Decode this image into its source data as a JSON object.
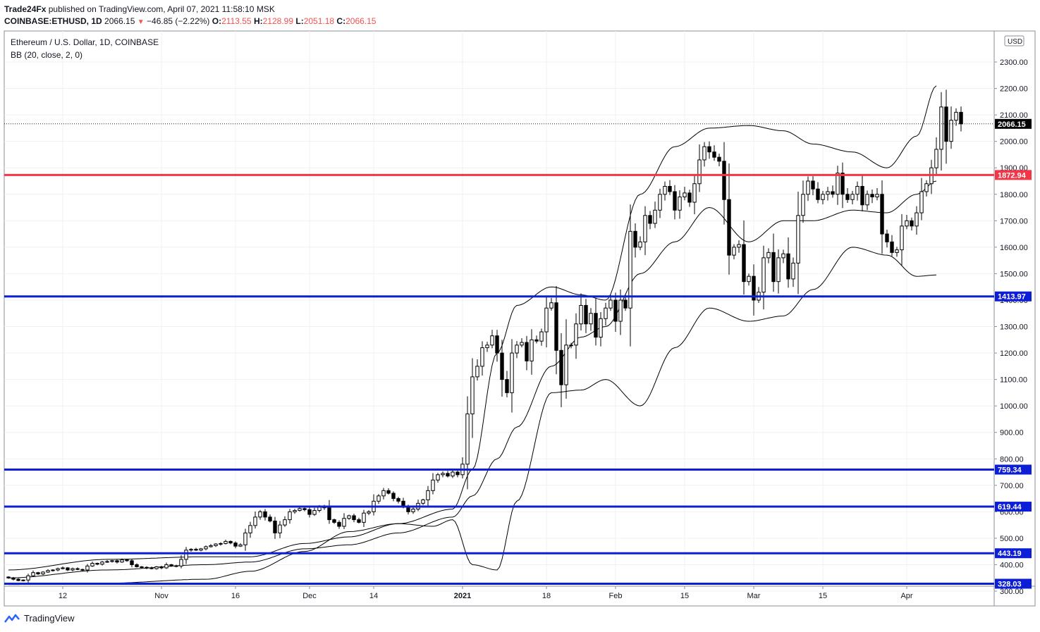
{
  "header": {
    "publisher": "Trade24Fx",
    "published_text": "published on TradingView.com, April 07, 2021 11:58:10 MSK",
    "symbol": "COINBASE:ETHUSD, 1D",
    "last": "2066.15",
    "change": "−46.85 (−2.22%)",
    "open_label": "O:",
    "open": "2113.55",
    "high_label": "H:",
    "high": "2128.99",
    "low_label": "L:",
    "low": "2051.18",
    "close_label": "C:",
    "close": "2066.15"
  },
  "legend": {
    "title": "Ethereum / U.S. Dollar, 1D, COINBASE",
    "indicator": "BB (20, close, 2, 0)"
  },
  "footer": {
    "brand": "TradingView"
  },
  "colors": {
    "up_fill": "#ffffff",
    "down_fill": "#000000",
    "candle_border": "#000000",
    "band": "#000000",
    "red_line": "#f23645",
    "blue_line": "#0c1ed6",
    "grid": "#eef1f4"
  },
  "chart_data": {
    "type": "candlestick",
    "currency": "USD",
    "ylim": [
      250,
      2300
    ],
    "y_ticks": [
      300,
      400,
      500,
      600,
      700,
      800,
      900,
      1000,
      1100,
      1200,
      1300,
      1400,
      1500,
      1600,
      1700,
      1800,
      1900,
      2000,
      2100,
      2200,
      2300
    ],
    "x_ticks": [
      "12",
      "Nov",
      "16",
      "Dec",
      "14",
      "2021",
      "18",
      "Feb",
      "15",
      "Mar",
      "15",
      "Apr"
    ],
    "x_tick_days": [
      11,
      31,
      46,
      61,
      74,
      92,
      109,
      123,
      137,
      151,
      165,
      182
    ],
    "horizontal_levels": [
      {
        "value": 1872.94,
        "label": "1872.94",
        "color": "red"
      },
      {
        "value": 1413.97,
        "label": "1413.97",
        "color": "blue"
      },
      {
        "value": 759.34,
        "label": "759.34",
        "color": "blue"
      },
      {
        "value": 619.44,
        "label": "619.44",
        "color": "blue"
      },
      {
        "value": 443.19,
        "label": "443.19",
        "color": "blue"
      },
      {
        "value": 328.03,
        "label": "328.03",
        "color": "blue"
      }
    ],
    "last_price": {
      "value": 2066.15,
      "label": "2066.15"
    },
    "closes": [
      350,
      345,
      340,
      342,
      358,
      370,
      365,
      372,
      378,
      380,
      385,
      388,
      380,
      385,
      382,
      380,
      395,
      405,
      402,
      410,
      412,
      415,
      410,
      418,
      415,
      400,
      392,
      390,
      388,
      385,
      392,
      388,
      400,
      396,
      395,
      420,
      455,
      458,
      455,
      460,
      468,
      472,
      478,
      480,
      488,
      482,
      470,
      475,
      520,
      548,
      580,
      600,
      580,
      565,
      520,
      550,
      570,
      600,
      605,
      612,
      608,
      590,
      605,
      620,
      615,
      570,
      560,
      545,
      575,
      585,
      570,
      560,
      595,
      600,
      640,
      660,
      680,
      670,
      650,
      640,
      620,
      600,
      610,
      632,
      645,
      680,
      720,
      740,
      745,
      735,
      750,
      740,
      780,
      970,
      1110,
      1150,
      1220,
      1230,
      1265,
      1200,
      1100,
      1050,
      1200,
      1230,
      1240,
      1170,
      1250,
      1245,
      1280,
      1370,
      1390,
      1210,
      1080,
      1230,
      1230,
      1310,
      1380,
      1310,
      1350,
      1260,
      1330,
      1370,
      1400,
      1320,
      1400,
      1370,
      1660,
      1600,
      1620,
      1720,
      1690,
      1740,
      1800,
      1830,
      1810,
      1740,
      1790,
      1805,
      1770,
      1840,
      1930,
      1980,
      1960,
      1940,
      1925,
      1780,
      1570,
      1600,
      1610,
      1470,
      1490,
      1400,
      1430,
      1560,
      1580,
      1470,
      1560,
      1575,
      1480,
      1540,
      1720,
      1800,
      1850,
      1820,
      1780,
      1800,
      1810,
      1800,
      1880,
      1800,
      1780,
      1800,
      1830,
      1760,
      1800,
      1790,
      1800,
      1650,
      1620,
      1580,
      1590,
      1680,
      1700,
      1680,
      1730,
      1810,
      1840,
      1900,
      1970,
      2130,
      2000,
      2080,
      2110,
      2066.15
    ],
    "bb_upper_anchors": [
      [
        0,
        380
      ],
      [
        20,
        420
      ],
      [
        40,
        430
      ],
      [
        49,
        430
      ],
      [
        60,
        480
      ],
      [
        69,
        505
      ],
      [
        79,
        555
      ],
      [
        90,
        610
      ],
      [
        94,
        760
      ],
      [
        99,
        1200
      ],
      [
        103,
        1380
      ],
      [
        110,
        1450
      ],
      [
        116,
        1420
      ],
      [
        121,
        1400
      ],
      [
        128,
        1800
      ],
      [
        135,
        1980
      ],
      [
        142,
        2050
      ],
      [
        150,
        2060
      ],
      [
        157,
        2040
      ],
      [
        163,
        1990
      ],
      [
        171,
        1960
      ],
      [
        178,
        1900
      ],
      [
        184,
        2020
      ],
      [
        188,
        2210
      ]
    ],
    "bb_mid_anchors": [
      [
        0,
        350
      ],
      [
        20,
        380
      ],
      [
        40,
        400
      ],
      [
        49,
        410
      ],
      [
        60,
        460
      ],
      [
        69,
        475
      ],
      [
        79,
        520
      ],
      [
        90,
        580
      ],
      [
        94,
        660
      ],
      [
        99,
        800
      ],
      [
        103,
        920
      ],
      [
        110,
        1150
      ],
      [
        116,
        1260
      ],
      [
        121,
        1300
      ],
      [
        128,
        1500
      ],
      [
        135,
        1620
      ],
      [
        142,
        1750
      ],
      [
        150,
        1620
      ],
      [
        157,
        1700
      ],
      [
        163,
        1700
      ],
      [
        171,
        1740
      ],
      [
        178,
        1730
      ],
      [
        184,
        1800
      ],
      [
        188,
        1850
      ]
    ],
    "bb_lower_anchors": [
      [
        0,
        325
      ],
      [
        20,
        330
      ],
      [
        40,
        345
      ],
      [
        49,
        375
      ],
      [
        60,
        450
      ],
      [
        69,
        525
      ],
      [
        79,
        555
      ],
      [
        86,
        545
      ],
      [
        90,
        570
      ],
      [
        94,
        400
      ],
      [
        99,
        380
      ],
      [
        103,
        640
      ],
      [
        110,
        1050
      ],
      [
        116,
        1060
      ],
      [
        121,
        1100
      ],
      [
        128,
        1000
      ],
      [
        135,
        1220
      ],
      [
        142,
        1370
      ],
      [
        150,
        1320
      ],
      [
        157,
        1340
      ],
      [
        163,
        1440
      ],
      [
        171,
        1600
      ],
      [
        178,
        1570
      ],
      [
        184,
        1490
      ],
      [
        188,
        1495
      ]
    ]
  }
}
